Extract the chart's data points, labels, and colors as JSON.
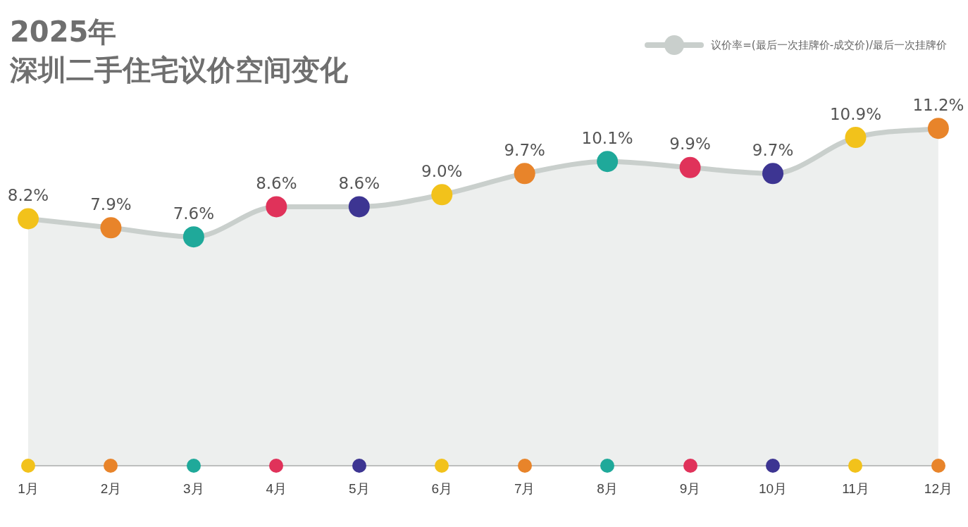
{
  "chart_data": {
    "type": "area",
    "title": "2025年",
    "subtitle": "深圳二手住宅议价空间变化",
    "categories": [
      "1月",
      "2月",
      "3月",
      "4月",
      "5月",
      "6月",
      "7月",
      "8月",
      "9月",
      "10月",
      "11月",
      "12月"
    ],
    "series": [
      {
        "name": "议价率=(最后一次挂牌价-成交价)/最后一次挂牌价",
        "color": "#c9cfcc",
        "colors": [
          "#f2c21b",
          "#e8842a",
          "#1fa99a",
          "#e0325a",
          "#3d3592",
          "#f2c21b",
          "#e8842a",
          "#1fa99a",
          "#e0325a",
          "#3d3592",
          "#f2c21b",
          "#e8842a"
        ],
        "values": [
          8.2,
          7.9,
          7.6,
          8.6,
          8.6,
          9.0,
          9.7,
          10.1,
          9.9,
          9.7,
          10.9,
          11.2
        ],
        "value_labels": [
          "8.2%",
          "7.9%",
          "7.6%",
          "8.6%",
          "8.6%",
          "9.0%",
          "9.7%",
          "10.1%",
          "9.9%",
          "9.7%",
          "10.9%",
          "11.2%"
        ]
      }
    ],
    "tick_labels": "x",
    "grid": false,
    "legend": "top right",
    "marker": "circle",
    "line_style": "solid"
  }
}
